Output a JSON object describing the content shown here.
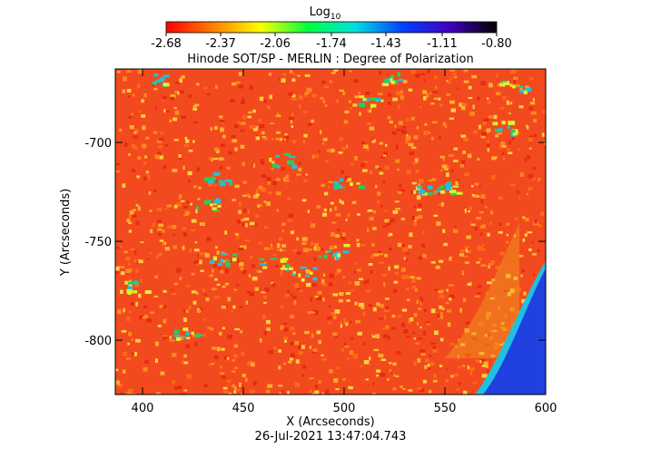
{
  "chart_data": {
    "type": "heatmap",
    "title": "Hinode SOT/SP - MERLIN : Degree of Polarization",
    "x_label": "X (Arcseconds)",
    "y_label": "Y (Arcseconds)",
    "footer": "26-Jul-2021 13:47:04.743",
    "xlim": [
      386.5,
      600
    ],
    "xticks": [
      400,
      450,
      500,
      550,
      600
    ],
    "ylim": [
      -827.5,
      -662.8
    ],
    "yticks": [
      -700,
      -750,
      -800
    ],
    "colorbar": {
      "label": "Log",
      "label_sub": "10",
      "lim": [
        -2.68,
        -0.8
      ],
      "ticks": [
        -2.68,
        -2.37,
        -2.06,
        -1.74,
        -1.43,
        -1.11,
        {
          "value": -0.8,
          "label": "-0.80"
        }
      ],
      "colors": [
        "#ff0000",
        "#ff8000",
        "#ffff00",
        "#00ff40",
        "#00e0e0",
        "#0040ff",
        "#4000c0",
        "#000000"
      ]
    }
  }
}
